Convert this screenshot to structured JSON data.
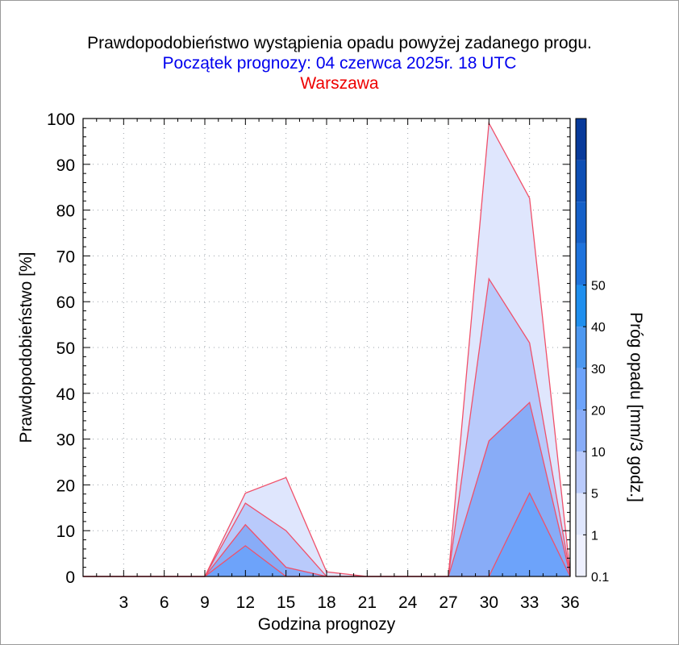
{
  "chart_data": {
    "type": "area",
    "title": "Prawdopodobieństwo wystąpienia opadu powyżej zadanego progu.",
    "subtitle": "Początek prognozy: 04 czerwca 2025r. 18 UTC",
    "location": "Warszawa",
    "xlabel": "Godzina prognozy",
    "ylabel": "Prawdopodobieństwo [%]",
    "colorbar_label": "Próg opadu [mm/3 godz.]",
    "xlim": [
      0,
      36
    ],
    "ylim": [
      0,
      100
    ],
    "xticks": [
      3,
      6,
      9,
      12,
      15,
      18,
      21,
      24,
      27,
      30,
      33,
      36
    ],
    "yticks": [
      0,
      10,
      20,
      30,
      40,
      50,
      60,
      70,
      80,
      90,
      100
    ],
    "x": [
      0,
      3,
      6,
      9,
      12,
      15,
      18,
      21,
      24,
      27,
      30,
      33,
      36
    ],
    "series": [
      {
        "threshold": "0.1",
        "color": "#dfe6fd",
        "values": [
          0,
          0,
          0,
          0,
          18.2,
          21.6,
          1,
          0,
          0,
          0,
          99,
          82.6,
          0.8
        ]
      },
      {
        "threshold": "1",
        "color": "#b9cafb",
        "values": [
          0,
          0,
          0,
          0,
          16,
          10,
          0,
          0,
          0,
          0,
          65,
          51,
          0.5
        ]
      },
      {
        "threshold": "5",
        "color": "#88acf7",
        "values": [
          0,
          0,
          0,
          0,
          11.3,
          2,
          0,
          0,
          0,
          0,
          29.6,
          38,
          0.3
        ]
      },
      {
        "threshold": "10",
        "color": "#6da3fa",
        "values": [
          0,
          0,
          0,
          0,
          6.7,
          0,
          0,
          0,
          0,
          0,
          0,
          18.2,
          0
        ]
      }
    ],
    "colorbar": {
      "labels": [
        "0.1",
        "1",
        "5",
        "10",
        "20",
        "30",
        "40",
        "50"
      ],
      "colors": [
        "#eef0fe",
        "#dfe6fd",
        "#b9cafb",
        "#88acf7",
        "#6da3fa",
        "#4d98f0",
        "#1f8fee",
        "#1e73dc",
        "#1560c8",
        "#0e4fb4",
        "#083a9a"
      ]
    }
  }
}
